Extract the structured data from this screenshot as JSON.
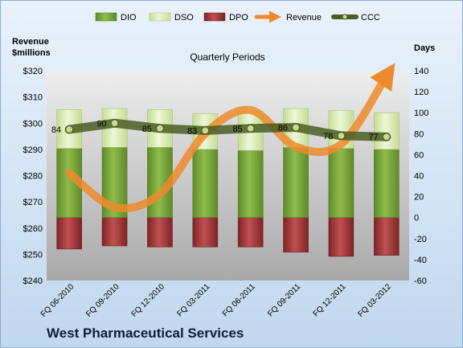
{
  "company": "West Pharmaceutical Services",
  "chart_data": {
    "type": "bar",
    "subtitle": "Quarterly Periods",
    "left_axis_title": [
      "Revenue",
      "$millions"
    ],
    "right_axis_title": "Days",
    "categories": [
      "FQ 06-2010",
      "FQ 09-2010",
      "FQ 12-2010",
      "FQ 03-2011",
      "FQ 06-2011",
      "FQ 09-2011",
      "FQ 12-2011",
      "FQ 03-2012"
    ],
    "left_axis": {
      "min": 240,
      "max": 320,
      "step": 10,
      "ticks": [
        "$240",
        "$250",
        "$260",
        "$270",
        "$280",
        "$290",
        "$300",
        "$310",
        "$320"
      ]
    },
    "right_axis": {
      "min": -60,
      "max": 140,
      "step": 20,
      "ticks": [
        "-60",
        "-40",
        "-20",
        "0",
        "20",
        "40",
        "60",
        "80",
        "100",
        "120",
        "140"
      ]
    },
    "series": [
      {
        "name": "DIO",
        "axis": "days",
        "kind": "stacked-bar",
        "color": "#77a33a",
        "values": [
          66,
          67,
          67,
          65,
          64,
          67,
          66,
          65
        ]
      },
      {
        "name": "DSO",
        "axis": "days",
        "kind": "stacked-bar",
        "color": "#d9ecb4",
        "values": [
          37,
          37,
          36,
          34,
          37,
          37,
          36,
          35
        ]
      },
      {
        "name": "DPO",
        "axis": "days",
        "kind": "negative-bar",
        "color": "#a33a3c",
        "values": [
          -30,
          -27,
          -28,
          -28,
          -28,
          -33,
          -37,
          -36
        ]
      },
      {
        "name": "Revenue",
        "axis": "revenue",
        "kind": "smooth-arrow-line",
        "color": "#ee8a2d",
        "values": [
          281,
          268,
          273,
          296,
          305,
          291,
          292,
          318
        ]
      },
      {
        "name": "CCC",
        "axis": "days",
        "kind": "line",
        "color": "#4a5d23",
        "values": [
          84,
          90,
          85,
          83,
          85,
          86,
          78,
          77
        ]
      }
    ],
    "data_labels": [
      "84",
      "90",
      "85",
      "83",
      "85",
      "86",
      "78",
      "77"
    ],
    "legend": {
      "position": "top",
      "items": [
        "DIO",
        "DSO",
        "DPO",
        "Revenue",
        "CCC"
      ]
    },
    "grid": false
  }
}
